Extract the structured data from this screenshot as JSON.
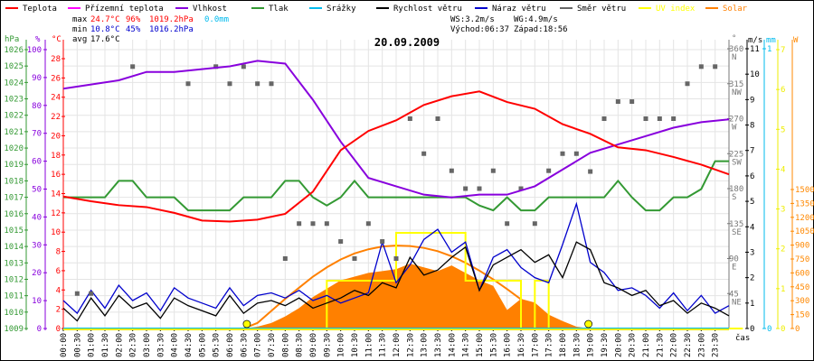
{
  "chart_data": {
    "type": "line",
    "title": "20.09.2009",
    "xlabel": "čas",
    "x_ticks": [
      "00:00",
      "00:30",
      "01:00",
      "01:30",
      "02:00",
      "02:30",
      "03:00",
      "03:30",
      "04:00",
      "04:30",
      "05:00",
      "05:30",
      "06:00",
      "06:30",
      "07:00",
      "07:30",
      "08:00",
      "08:30",
      "09:00",
      "09:30",
      "10:00",
      "10:30",
      "11:00",
      "11:30",
      "12:00",
      "12:30",
      "13:00",
      "13:30",
      "14:00",
      "14:30",
      "15:00",
      "15:30",
      "16:00",
      "16:30",
      "17:00",
      "17:30",
      "18:00",
      "18:30",
      "19:00",
      "19:30",
      "20:00",
      "20:30",
      "21:00",
      "21:30",
      "22:00",
      "22:30",
      "23:00",
      "23:30"
    ],
    "legend": [
      {
        "name": "Teplota",
        "color": "#ff0000"
      },
      {
        "name": "Přízemní teplota",
        "color": "#ff00ff"
      },
      {
        "name": "Vlhkost",
        "color": "#8800dd"
      },
      {
        "name": "Tlak",
        "color": "#339933"
      },
      {
        "name": "Srážky",
        "color": "#00bbee"
      },
      {
        "name": "Rychlost větru",
        "color": "#000000"
      },
      {
        "name": "Náraz větru",
        "color": "#0000cc"
      },
      {
        "name": "Směr větru",
        "color": "#666666"
      },
      {
        "name": "UV index",
        "color": "#ffff00"
      },
      {
        "name": "Solar",
        "color": "#ff8000"
      }
    ],
    "stats": {
      "max_label": "max",
      "max_temp": "24.7°C",
      "max_hum": "96%",
      "max_press": "1019.2hPa",
      "max_rain": "0.0mm",
      "min_label": "min",
      "min_temp": "10.8°C",
      "min_hum": "45%",
      "min_press": "1016.2hPa",
      "avg_label": "avg",
      "avg_temp": "17.6°C",
      "ws": "WS:3.2m/s",
      "wg": "WG:4.9m/s",
      "sunrise": "Východ:06:37",
      "sunset": "Západ:18:56"
    },
    "axes": {
      "pressure": {
        "unit": "hPa",
        "range": [
          1009,
          1026
        ],
        "ticks": [
          1026,
          1025,
          1024,
          1023,
          1022,
          1021,
          1020,
          1019,
          1018,
          1017,
          1016,
          1015,
          1014,
          1013,
          1012,
          1011,
          1010,
          1009
        ]
      },
      "humidity": {
        "unit": "%",
        "range": [
          0,
          100
        ],
        "ticks": [
          100,
          90,
          80,
          70,
          60,
          50,
          40,
          30,
          20,
          10,
          0
        ]
      },
      "temperature": {
        "unit": "°C",
        "range": [
          0,
          29.9
        ],
        "ticks": [
          28,
          26,
          24,
          22,
          20,
          18,
          16,
          14,
          12,
          10,
          8,
          6,
          4,
          2,
          0
        ]
      },
      "direction": {
        "unit": "°",
        "range": [
          0,
          360
        ],
        "ticks": [
          {
            "v": 360,
            "l": "N"
          },
          {
            "v": 315,
            "l": "NW"
          },
          {
            "v": 270,
            "l": "W"
          },
          {
            "v": 225,
            "l": "SW"
          },
          {
            "v": 180,
            "l": "S"
          },
          {
            "v": 135,
            "l": "SE"
          },
          {
            "v": 90,
            "l": "E"
          },
          {
            "v": 45,
            "l": "NE"
          }
        ]
      },
      "wind": {
        "unit": "m/s",
        "range": [
          0,
          11
        ],
        "ticks": [
          11,
          10,
          9,
          8,
          7,
          6,
          5,
          4,
          3,
          2,
          1,
          0
        ]
      },
      "rain": {
        "unit": "mm",
        "range": [
          0,
          1
        ],
        "ticks": [
          1,
          0
        ]
      },
      "uv": {
        "unit": "",
        "range": [
          0,
          7
        ],
        "ticks": [
          7,
          6,
          5,
          4,
          3,
          2,
          1,
          0
        ]
      },
      "solar": {
        "unit": "W",
        "range": [
          0,
          1500
        ],
        "ticks": [
          1500,
          1350,
          1200,
          1050,
          900,
          750,
          600,
          450,
          300,
          150,
          0
        ]
      }
    },
    "series": {
      "hours": [
        0,
        1,
        2,
        3,
        4,
        5,
        6,
        7,
        8,
        9,
        10,
        11,
        12,
        13,
        14,
        15,
        16,
        17,
        18,
        19,
        20,
        21,
        22,
        23,
        24
      ],
      "temperature": [
        13.7,
        13.2,
        12.8,
        12.6,
        12.0,
        11.2,
        11.1,
        11.3,
        11.9,
        14.2,
        18.5,
        20.5,
        21.6,
        23.2,
        24.1,
        24.6,
        23.5,
        22.8,
        21.2,
        20.2,
        18.8,
        18.5,
        17.8,
        17.0,
        16.0
      ],
      "humidity": [
        86,
        87.5,
        89,
        92,
        92,
        93,
        94,
        96,
        95,
        82,
        67,
        54,
        51,
        48,
        47,
        48,
        48,
        51,
        57,
        63,
        66,
        69,
        72,
        74,
        75
      ],
      "half_hours": [
        0,
        0.5,
        1,
        1.5,
        2,
        2.5,
        3,
        3.5,
        4,
        4.5,
        5,
        5.5,
        6,
        6.5,
        7,
        7.5,
        8,
        8.5,
        9,
        9.5,
        10,
        10.5,
        11,
        11.5,
        12,
        12.5,
        13,
        13.5,
        14,
        14.5,
        15,
        15.5,
        16,
        16.5,
        17,
        17.5,
        18,
        18.5,
        19,
        19.5,
        20,
        20.5,
        21,
        21.5,
        22,
        22.5,
        23,
        23.5,
        24
      ],
      "pressure": [
        1017,
        1017,
        1017,
        1017,
        1018,
        1018,
        1017,
        1017,
        1017,
        1016.2,
        1016.2,
        1016.2,
        1016.2,
        1017,
        1017,
        1017,
        1018,
        1018,
        1017,
        1016.5,
        1017,
        1018,
        1017,
        1017,
        1017,
        1017,
        1017,
        1017,
        1017,
        1017,
        1016.5,
        1016.2,
        1017,
        1016.2,
        1016.2,
        1017,
        1017,
        1017,
        1017,
        1017,
        1018,
        1017,
        1016.2,
        1016.2,
        1017,
        1017,
        1017.5,
        1019.2,
        1019.2
      ],
      "wind_speed": [
        0.8,
        0.3,
        1.2,
        0.5,
        1.3,
        0.8,
        1.0,
        0.4,
        1.2,
        0.9,
        0.7,
        0.5,
        1.3,
        0.6,
        1.0,
        1.1,
        0.9,
        1.2,
        0.8,
        1.0,
        1.2,
        1.5,
        1.3,
        1.8,
        1.6,
        2.8,
        2.1,
        2.3,
        2.8,
        3.2,
        1.5,
        2.5,
        2.8,
        3.1,
        2.6,
        2.9,
        2.0,
        3.4,
        3.1,
        1.8,
        1.6,
        1.3,
        1.5,
        0.9,
        1.1,
        0.6,
        1.0,
        0.8,
        0.5
      ],
      "wind_gust": [
        1.1,
        0.6,
        1.5,
        0.8,
        1.7,
        1.1,
        1.4,
        0.7,
        1.6,
        1.2,
        1.0,
        0.8,
        1.6,
        0.9,
        1.3,
        1.4,
        1.2,
        1.5,
        1.1,
        1.3,
        1.0,
        1.2,
        1.4,
        3.4,
        1.8,
        2.5,
        3.5,
        3.9,
        3.0,
        3.4,
        1.5,
        2.8,
        3.1,
        2.4,
        2.0,
        1.8,
        3.3,
        4.9,
        2.6,
        2.2,
        1.5,
        1.6,
        1.3,
        0.8,
        1.4,
        0.7,
        1.3,
        0.6,
        0.9
      ],
      "solar": [
        0,
        0,
        0,
        0,
        0,
        0,
        0,
        0,
        0,
        0,
        0,
        0,
        0,
        0,
        20,
        60,
        130,
        220,
        340,
        430,
        520,
        560,
        600,
        620,
        640,
        700,
        660,
        620,
        680,
        600,
        520,
        460,
        200,
        320,
        280,
        150,
        80,
        20,
        0,
        0,
        0,
        0,
        0,
        0,
        0,
        0,
        0,
        0,
        0
      ],
      "solar_theoretical": [
        0,
        0,
        0,
        0,
        0,
        0,
        0,
        0,
        0,
        0,
        0,
        0,
        0,
        0,
        60,
        190,
        320,
        440,
        560,
        660,
        745,
        810,
        855,
        885,
        895,
        890,
        870,
        835,
        780,
        710,
        625,
        530,
        425,
        315,
        200,
        90,
        0,
        0,
        0,
        0,
        0,
        0,
        0,
        0,
        0,
        0,
        0,
        0,
        0
      ],
      "uv": [
        0,
        0,
        0,
        0,
        0,
        0,
        0,
        0,
        0,
        0,
        0,
        0,
        0,
        0,
        0,
        0,
        0,
        0,
        0,
        1.2,
        1.2,
        1.2,
        1.2,
        1.2,
        2.4,
        2.4,
        2.4,
        2.4,
        2.4,
        1.2,
        1.2,
        1.2,
        1.2,
        0,
        1.2,
        0,
        0,
        0,
        0,
        0,
        0,
        0,
        0,
        0,
        0,
        0,
        0,
        0,
        0
      ],
      "rain": [
        0,
        0,
        0,
        0,
        0,
        0,
        0,
        0,
        0,
        0,
        0,
        0,
        0,
        0,
        0,
        0,
        0,
        0,
        0,
        0,
        0,
        0,
        0,
        0,
        0,
        0,
        0,
        0,
        0,
        0,
        0,
        0,
        0,
        0,
        0,
        0,
        0,
        0,
        0,
        0,
        0,
        0,
        0,
        0,
        0,
        0,
        0,
        0,
        0
      ],
      "wind_direction": [
        [
          0.5,
          45
        ],
        [
          1.0,
          45
        ],
        [
          2.5,
          337
        ],
        [
          4.5,
          315
        ],
        [
          5.5,
          337
        ],
        [
          6.0,
          315
        ],
        [
          6.5,
          337
        ],
        [
          7.0,
          315
        ],
        [
          7.5,
          315
        ],
        [
          8.0,
          90
        ],
        [
          8.5,
          135
        ],
        [
          9.0,
          135
        ],
        [
          9.5,
          135
        ],
        [
          10.0,
          112
        ],
        [
          10.5,
          90
        ],
        [
          11.0,
          135
        ],
        [
          11.5,
          112
        ],
        [
          12.0,
          90
        ],
        [
          12.5,
          270
        ],
        [
          13.0,
          225
        ],
        [
          13.5,
          270
        ],
        [
          14.0,
          203
        ],
        [
          14.5,
          180
        ],
        [
          15.0,
          180
        ],
        [
          15.5,
          203
        ],
        [
          16.0,
          135
        ],
        [
          16.5,
          180
        ],
        [
          17.0,
          135
        ],
        [
          17.5,
          203
        ],
        [
          18.0,
          225
        ],
        [
          18.5,
          225
        ],
        [
          19.0,
          202
        ],
        [
          19.5,
          270
        ],
        [
          20.0,
          292
        ],
        [
          20.5,
          292
        ],
        [
          21.0,
          270
        ],
        [
          21.5,
          270
        ],
        [
          22.0,
          270
        ],
        [
          22.5,
          315
        ],
        [
          23.0,
          337
        ],
        [
          23.5,
          337
        ]
      ]
    },
    "sun_markers": [
      "06:37",
      "18:56"
    ]
  }
}
